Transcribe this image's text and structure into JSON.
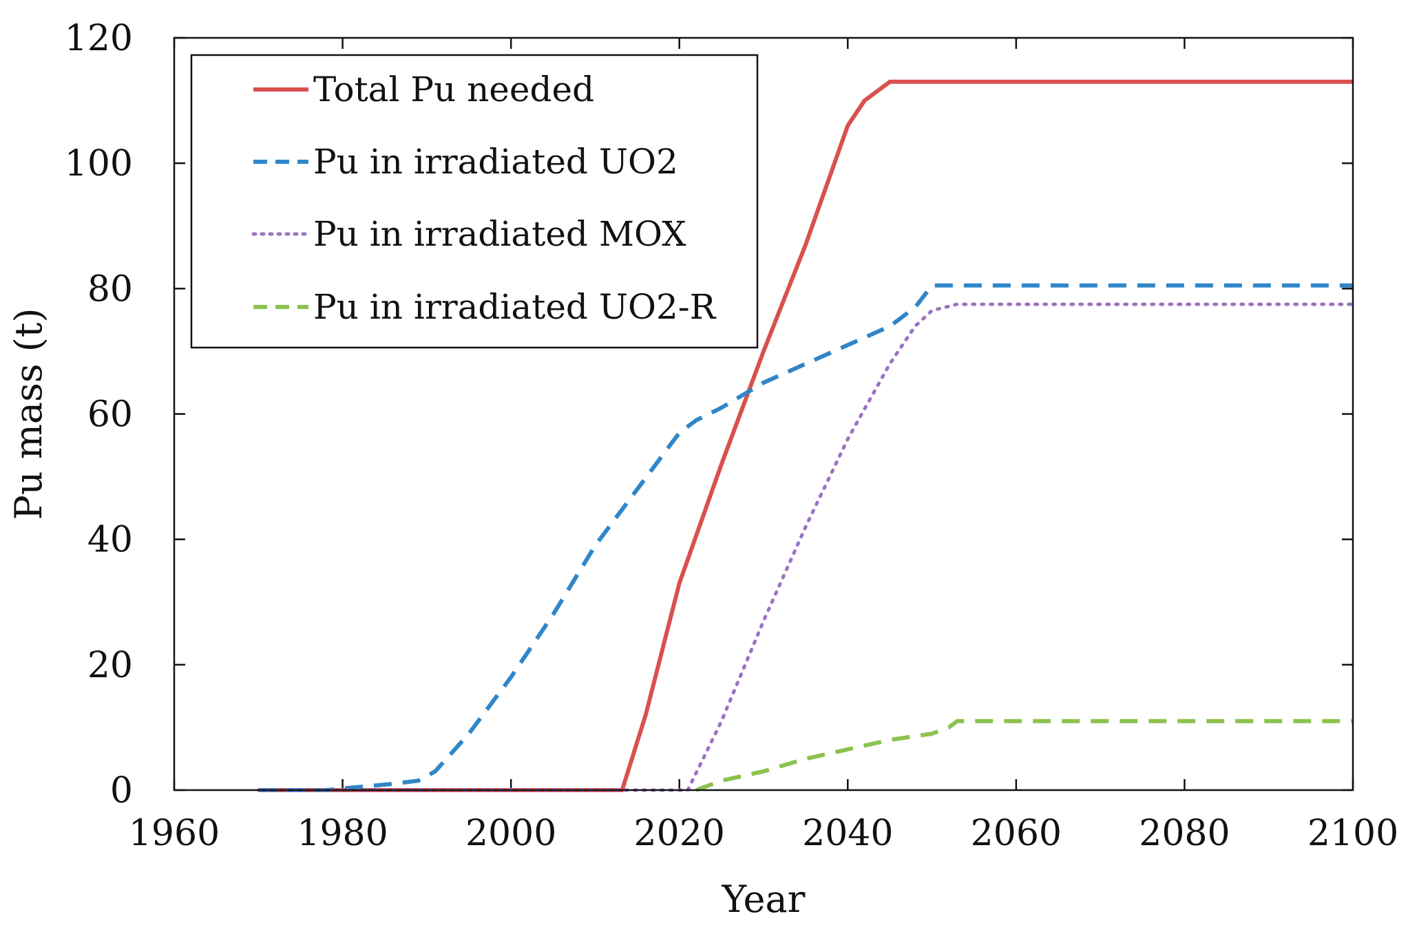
{
  "chart_data": {
    "type": "line",
    "title": "",
    "xlabel": "Year",
    "ylabel": "Pu mass (t)",
    "xlim": [
      1960,
      2100
    ],
    "ylim": [
      0,
      120
    ],
    "xticks": [
      1960,
      1980,
      2000,
      2020,
      2040,
      2060,
      2080,
      2100
    ],
    "yticks": [
      0,
      20,
      40,
      60,
      80,
      100,
      120
    ],
    "xtick_labels": [
      "1960",
      "1980",
      "2000",
      "2020",
      "2040",
      "2060",
      "2080",
      "2100"
    ],
    "ytick_labels": [
      "0",
      "20",
      "40",
      "60",
      "80",
      "100",
      "120"
    ],
    "grid": false,
    "legend_position": "top-left",
    "series": [
      {
        "name": "Total Pu needed",
        "color": "#d9504e",
        "style": "solid",
        "x": [
          1970,
          2013.2,
          2016,
          2020,
          2025,
          2030,
          2035,
          2040,
          2042,
          2044,
          2045,
          2100
        ],
        "y": [
          0,
          0,
          12,
          33,
          52,
          70,
          87,
          106,
          110,
          112,
          113,
          113
        ]
      },
      {
        "name": "Pu in irradiated UO2",
        "color": "#2f86c8",
        "style": "dashed",
        "x": [
          1970,
          1978,
          1982,
          1986,
          1989,
          1991,
          1995,
          2000,
          2005,
          2010,
          2015,
          2020,
          2022,
          2025,
          2030,
          2035,
          2040,
          2045,
          2048,
          2050,
          2100
        ],
        "y": [
          0,
          0,
          0.5,
          1,
          1.5,
          3,
          9,
          18,
          28,
          39,
          48,
          57,
          59,
          61,
          65,
          68,
          71,
          74,
          77,
          80.5,
          80.5
        ]
      },
      {
        "name": "Pu in irradiated MOX",
        "color": "#9b72c0",
        "style": "dotted",
        "x": [
          1970,
          2021,
          2025,
          2030,
          2035,
          2040,
          2045,
          2048,
          2050,
          2053,
          2100
        ],
        "y": [
          0,
          0,
          11,
          27,
          42,
          56,
          68,
          74,
          76.5,
          77.5,
          77.5
        ]
      },
      {
        "name": "Pu in irradiated UO2-R",
        "color": "#8cc24e",
        "style": "dashed",
        "x": [
          2022,
          2025,
          2030,
          2035,
          2040,
          2045,
          2050,
          2052,
          2053,
          2100
        ],
        "y": [
          0,
          1.5,
          3,
          5,
          6.5,
          8,
          9,
          10,
          11,
          11
        ]
      }
    ]
  }
}
